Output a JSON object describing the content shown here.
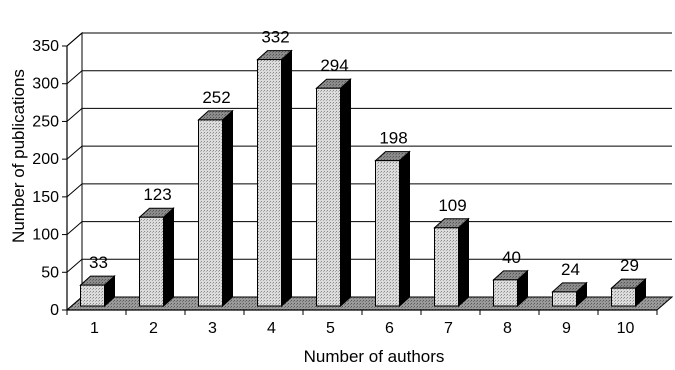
{
  "chart_data": {
    "type": "bar",
    "categories": [
      "1",
      "2",
      "3",
      "4",
      "5",
      "6",
      "7",
      "8",
      "9",
      "10"
    ],
    "values": [
      33,
      123,
      252,
      332,
      294,
      198,
      109,
      40,
      24,
      29
    ],
    "value_labels": [
      "33",
      "123",
      "252",
      "332",
      "294",
      "198",
      "109",
      "40",
      "24",
      "29"
    ],
    "xlabel": "Number of authors",
    "ylabel": "Number of publications",
    "ylim": [
      0,
      350
    ],
    "yticks": [
      "0",
      "50",
      "100",
      "150",
      "200",
      "250",
      "300",
      "350"
    ],
    "grid": true,
    "style": "3d",
    "colors": {
      "bar_front": "#dcdcdc",
      "bar_top": "#8c8c8c",
      "bar_side": "#000000",
      "floor": "#9a9a9a",
      "grid": "#000000"
    }
  }
}
